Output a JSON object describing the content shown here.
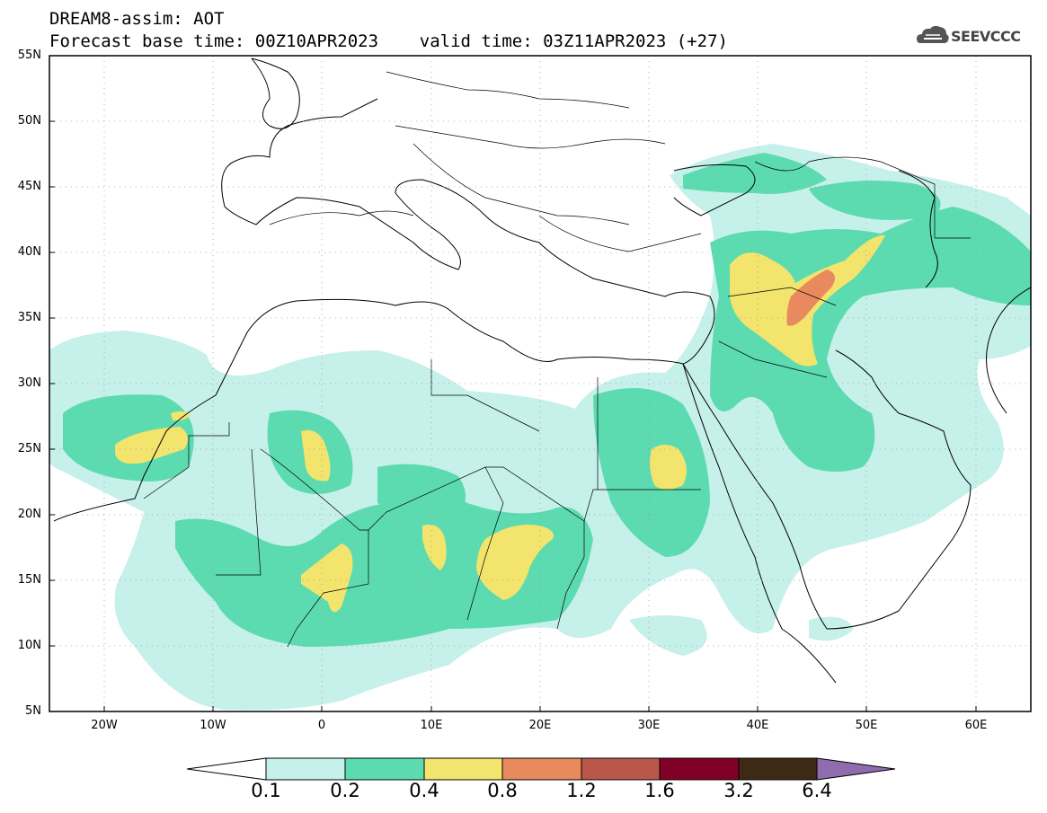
{
  "header": {
    "line1": "DREAM8-assim: AOT",
    "line2": "Forecast base time: 00Z10APR2023    valid time: 03Z11APR2023 (+27)"
  },
  "logo": {
    "text": "SEEVCCC",
    "icon": "cloud-logo-icon"
  },
  "map": {
    "lat_labels": [
      "55N",
      "50N",
      "45N",
      "40N",
      "35N",
      "30N",
      "25N",
      "20N",
      "15N",
      "10N",
      "5N"
    ],
    "lon_labels": [
      "20W",
      "10W",
      "0",
      "10E",
      "20E",
      "30E",
      "40E",
      "50E",
      "60E"
    ],
    "lon_range": [
      -25,
      65
    ],
    "lat_range": [
      5,
      55
    ],
    "grid": true
  },
  "colorbar": {
    "labels": [
      "0.1",
      "0.2",
      "0.4",
      "0.8",
      "1.2",
      "1.6",
      "3.2",
      "6.4"
    ],
    "colors": [
      "#c6f0ea",
      "#5cdbb0",
      "#f2e46c",
      "#e8895e",
      "#b9584a",
      "#800028",
      "#3e2a14"
    ],
    "over_color": "#8e6cae",
    "under_color": "#ffffff"
  }
}
